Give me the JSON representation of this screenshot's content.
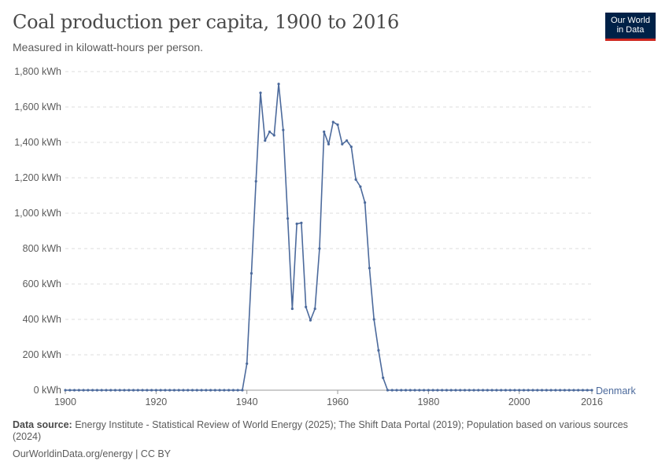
{
  "header": {
    "title": "Coal production per capita, 1900 to 2016",
    "subtitle": "Measured in kilowatt-hours per person.",
    "logo_line1": "Our World",
    "logo_line2": "in Data"
  },
  "footer": {
    "source_label": "Data source:",
    "source_text": "Energy Institute - Statistical Review of World Energy (2025); The Shift Data Portal (2019); Population based on various sources (2024)",
    "credit": "OurWorldinData.org/energy | CC BY"
  },
  "colors": {
    "series": "#4c6a9c",
    "grid": "#dddddd",
    "logo_bg": "#002147",
    "logo_accent": "#ce261e"
  },
  "chart_data": {
    "type": "line",
    "title": "Coal production per capita, 1900 to 2016",
    "subtitle": "Measured in kilowatt-hours per person.",
    "xlim": [
      1900,
      2016
    ],
    "ylim": [
      0,
      1800
    ],
    "y_ticks": [
      0,
      200,
      400,
      600,
      800,
      1000,
      1200,
      1400,
      1600,
      1800
    ],
    "y_tick_labels": [
      "0 kWh",
      "200 kWh",
      "400 kWh",
      "600 kWh",
      "800 kWh",
      "1,000 kWh",
      "1,200 kWh",
      "1,400 kWh",
      "1,600 kWh",
      "1,800 kWh"
    ],
    "x_ticks": [
      1900,
      1920,
      1940,
      1960,
      1980,
      2000,
      2016
    ],
    "x_tick_labels": [
      "1900",
      "1920",
      "1940",
      "1960",
      "1980",
      "2000",
      "2016"
    ],
    "grid": "horizontal dashed",
    "legend": "end-of-line label",
    "series": [
      {
        "name": "Denmark",
        "x": [
          1900,
          1901,
          1902,
          1903,
          1904,
          1905,
          1906,
          1907,
          1908,
          1909,
          1910,
          1911,
          1912,
          1913,
          1914,
          1915,
          1916,
          1917,
          1918,
          1919,
          1920,
          1921,
          1922,
          1923,
          1924,
          1925,
          1926,
          1927,
          1928,
          1929,
          1930,
          1931,
          1932,
          1933,
          1934,
          1935,
          1936,
          1937,
          1938,
          1939,
          1940,
          1941,
          1942,
          1943,
          1944,
          1945,
          1946,
          1947,
          1948,
          1949,
          1950,
          1951,
          1952,
          1953,
          1954,
          1955,
          1956,
          1957,
          1958,
          1959,
          1960,
          1961,
          1962,
          1963,
          1964,
          1965,
          1966,
          1967,
          1968,
          1969,
          1970,
          1971,
          1972,
          1973,
          1974,
          1975,
          1976,
          1977,
          1978,
          1979,
          1980,
          1981,
          1982,
          1983,
          1984,
          1985,
          1986,
          1987,
          1988,
          1989,
          1990,
          1991,
          1992,
          1993,
          1994,
          1995,
          1996,
          1997,
          1998,
          1999,
          2000,
          2001,
          2002,
          2003,
          2004,
          2005,
          2006,
          2007,
          2008,
          2009,
          2010,
          2011,
          2012,
          2013,
          2014,
          2015,
          2016
        ],
        "values": [
          0,
          0,
          0,
          0,
          0,
          0,
          0,
          0,
          0,
          0,
          0,
          0,
          0,
          0,
          0,
          0,
          0,
          0,
          0,
          0,
          0,
          0,
          0,
          0,
          0,
          0,
          0,
          0,
          0,
          0,
          0,
          0,
          0,
          0,
          0,
          0,
          0,
          0,
          0,
          0,
          150,
          660,
          1180,
          1680,
          1410,
          1460,
          1440,
          1730,
          1470,
          970,
          460,
          940,
          945,
          470,
          395,
          460,
          800,
          1460,
          1390,
          1515,
          1500,
          1390,
          1410,
          1375,
          1190,
          1150,
          1060,
          690,
          400,
          225,
          70,
          0,
          0,
          0,
          0,
          0,
          0,
          0,
          0,
          0,
          0,
          0,
          0,
          0,
          0,
          0,
          0,
          0,
          0,
          0,
          0,
          0,
          0,
          0,
          0,
          0,
          0,
          0,
          0,
          0,
          0,
          0,
          0,
          0,
          0,
          0,
          0,
          0,
          0,
          0,
          0,
          0,
          0,
          0,
          0,
          0,
          0
        ]
      }
    ]
  }
}
